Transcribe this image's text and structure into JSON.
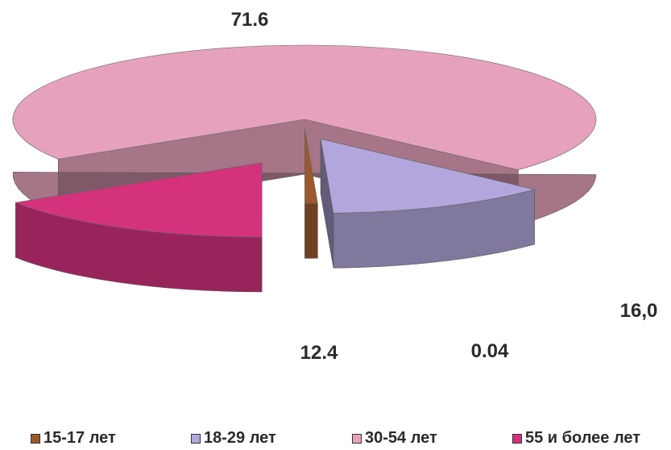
{
  "chart_data": {
    "type": "pie",
    "style": "3d-exploded",
    "categories": [
      "15-17 лет",
      "18-29 лет",
      "30-54 лет",
      "55 и более лет"
    ],
    "values": [
      0.04,
      12.4,
      71.6,
      16.0
    ],
    "data_labels": [
      "0.04",
      "12.4",
      "71.6",
      "16,0"
    ],
    "colors": [
      "#9a5a2c",
      "#b3a6dc",
      "#e6a2bd",
      "#d5327e"
    ],
    "legend_position": "bottom",
    "title": "",
    "grid": false
  },
  "legend": {
    "items": [
      {
        "label": "15-17 лет",
        "color": "#9a5a2c"
      },
      {
        "label": "18-29 лет",
        "color": "#b3a6dc"
      },
      {
        "label": "30-54 лет",
        "color": "#e6a2bd"
      },
      {
        "label": "55 и более лет",
        "color": "#d5327e"
      }
    ]
  }
}
